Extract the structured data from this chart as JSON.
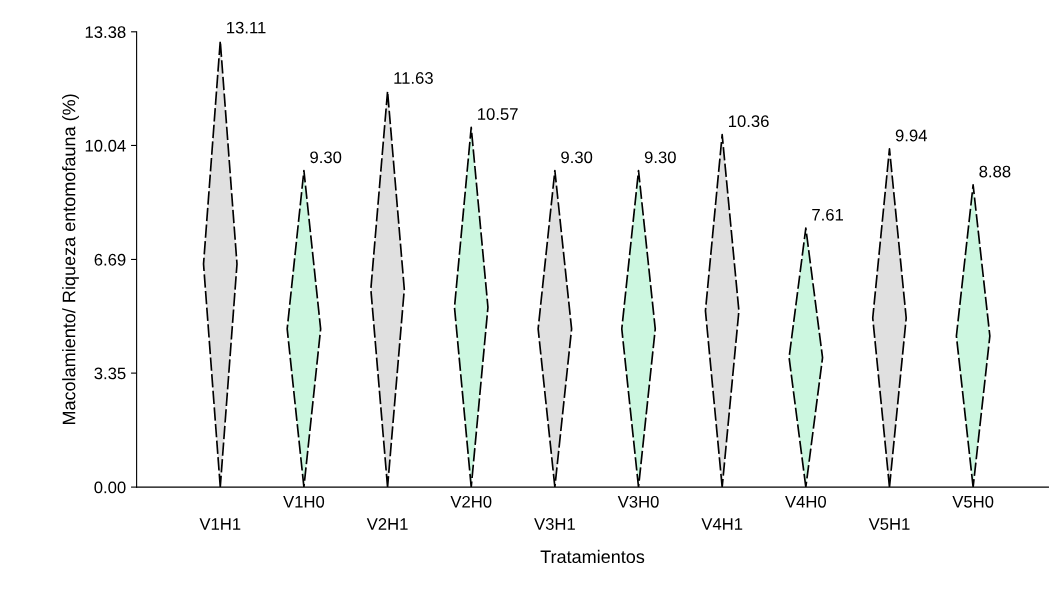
{
  "chart_data": {
    "type": "bar",
    "xlabel": "Tratamientos",
    "ylabel": "Macolamiento/ Riqueza entomofauna (%)",
    "categories": [
      "V1H1",
      "V1H0",
      "V2H1",
      "V2H0",
      "V3H1",
      "V3H0",
      "V4H1",
      "V4H0",
      "V5H1",
      "V5H0"
    ],
    "values": [
      13.11,
      9.3,
      11.63,
      10.57,
      9.3,
      9.3,
      10.36,
      7.61,
      9.94,
      8.88
    ],
    "value_labels": [
      "13.11",
      "9.30",
      "11.63",
      "10.57",
      "9.30",
      "9.30",
      "10.36",
      "7.61",
      "9.94",
      "8.88"
    ],
    "colors": [
      "#e0e0e0",
      "#ccf7e0",
      "#e0e0e0",
      "#ccf7e0",
      "#e0e0e0",
      "#ccf7e0",
      "#e0e0e0",
      "#ccf7e0",
      "#e0e0e0",
      "#ccf7e0"
    ],
    "ylim": [
      0,
      13.38
    ],
    "yticks": [
      {
        "value": 0,
        "label": "0.00"
      },
      3.35,
      6.69,
      10.04,
      13.38
    ],
    "grid": false
  }
}
